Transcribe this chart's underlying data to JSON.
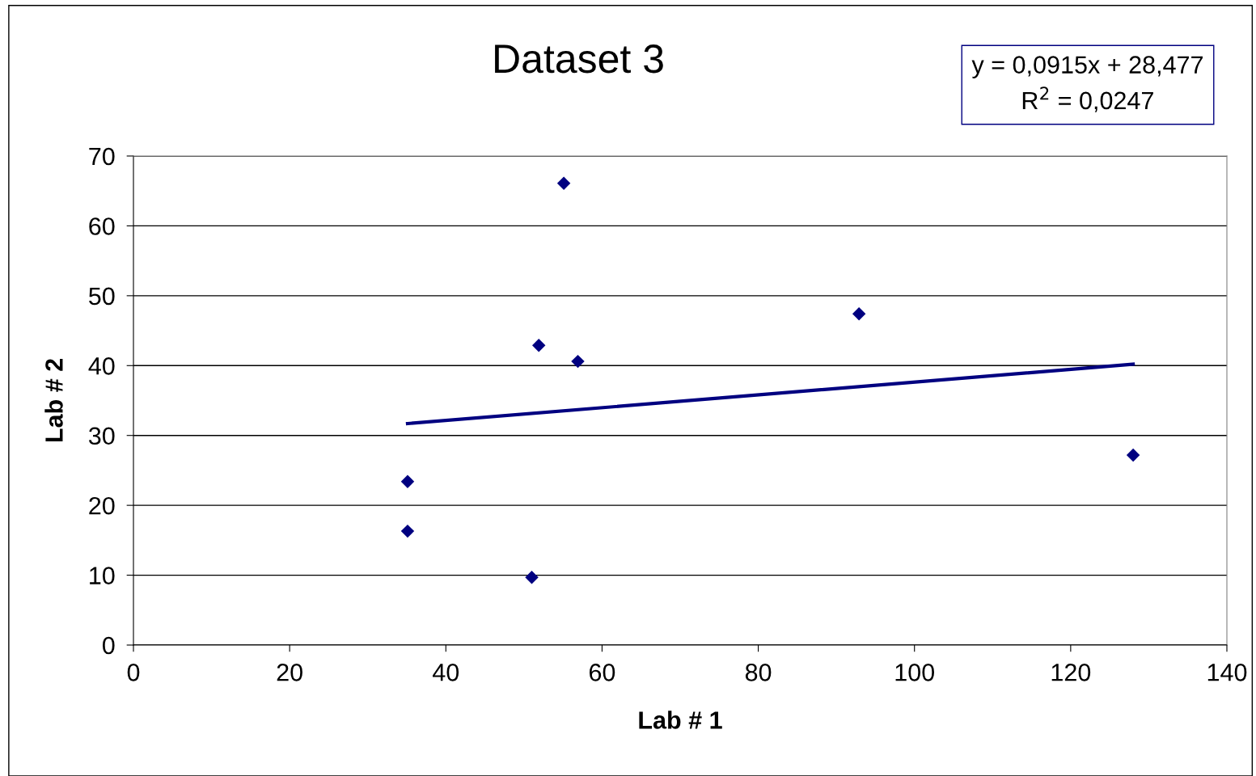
{
  "chart_data": {
    "type": "scatter",
    "title": "Dataset 3",
    "xlabel": "Lab # 1",
    "ylabel": "Lab # 2",
    "annotations": [
      "y = 0,0915x + 28,477",
      "R$^{2}$ = 0,0247"
    ],
    "xlim": [
      0,
      140
    ],
    "xticks": [
      0,
      20,
      40,
      60,
      80,
      100,
      120,
      140
    ],
    "ylim": [
      0,
      70
    ],
    "yticks": [
      0,
      10,
      20,
      30,
      40,
      50,
      60,
      70
    ],
    "grid": "y",
    "legend": false,
    "marker": "diamond",
    "series": [
      {
        "color": "#000080",
        "x": [
          35.1,
          35.1,
          51.0,
          51.9,
          55.1,
          56.9,
          92.9,
          128.0
        ],
        "values": [
          23.4,
          16.3,
          9.7,
          42.9,
          66.1,
          40.6,
          47.4,
          27.2
        ]
      },
      {
        "type": "line",
        "color": "#000080",
        "line_style": "solid",
        "marker": "none",
        "x": [
          35.1,
          128.0
        ],
        "values": [
          31.7,
          40.2
        ]
      }
    ]
  }
}
